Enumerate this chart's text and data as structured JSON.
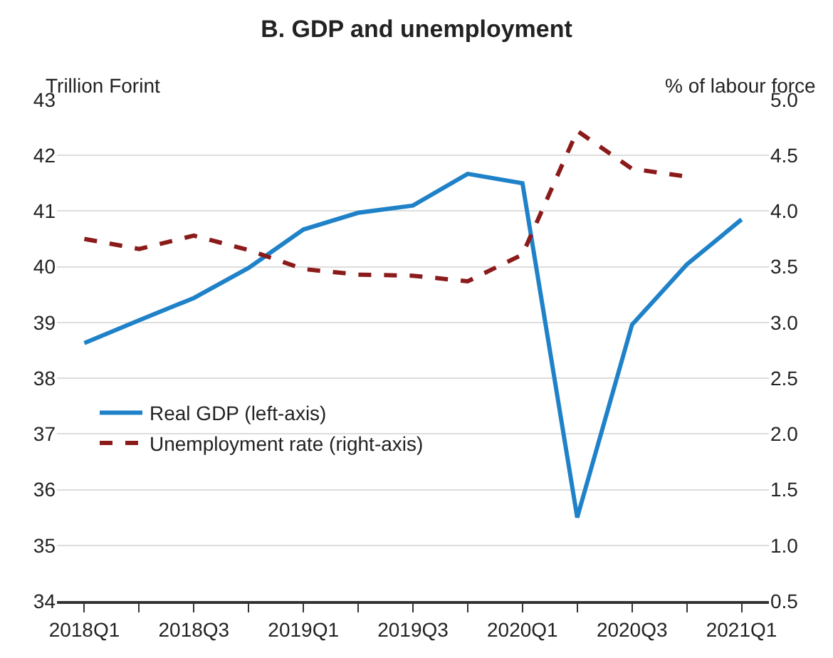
{
  "chart_data": {
    "type": "line",
    "title": "B. GDP and unemployment",
    "ylabel": "Trillion Forint",
    "y2label": "% of labour force",
    "categories": [
      "2018Q1",
      null,
      "2018Q3",
      null,
      "2019Q1",
      null,
      "2019Q3",
      null,
      "2020Q1",
      null,
      "2020Q3",
      null,
      "2021Q1"
    ],
    "series": [
      {
        "name": "Real GDP (left-axis)",
        "color": "#1f82c8",
        "line_style": "solid",
        "values": [
          38.63,
          39.04,
          39.44,
          39.98,
          40.67,
          40.97,
          41.1,
          41.67,
          41.5,
          35.5,
          38.96,
          40.04,
          40.85
        ]
      },
      {
        "name": "Unemployment rate (right-axis)",
        "color": "#8b1a1a",
        "line_style": "dashed",
        "axis": "y2",
        "values": [
          3.75,
          3.66,
          3.78,
          3.65,
          3.48,
          3.43,
          3.42,
          3.37,
          3.61,
          4.72,
          4.38,
          4.31,
          null
        ]
      }
    ],
    "ylim": [
      34,
      43
    ],
    "yticks": [
      34,
      35,
      36,
      37,
      38,
      39,
      40,
      41,
      42,
      43
    ],
    "y2lim": [
      0.5,
      5.0
    ],
    "y2ticks": [
      {
        "value": 0.5,
        "label": "0.5"
      },
      {
        "value": 1.0,
        "label": "1.0"
      },
      {
        "value": 1.5,
        "label": "1.5"
      },
      {
        "value": 2.0,
        "label": "2.0"
      },
      {
        "value": 2.5,
        "label": "2.5"
      },
      {
        "value": 3.0,
        "label": "3.0"
      },
      {
        "value": 3.5,
        "label": "3.5"
      },
      {
        "value": 4.0,
        "label": "4.0"
      },
      {
        "value": 4.5,
        "label": "4.5"
      },
      {
        "value": 5.0,
        "label": "5.0"
      }
    ],
    "grid": "y",
    "legend": "left",
    "marker": "none"
  }
}
